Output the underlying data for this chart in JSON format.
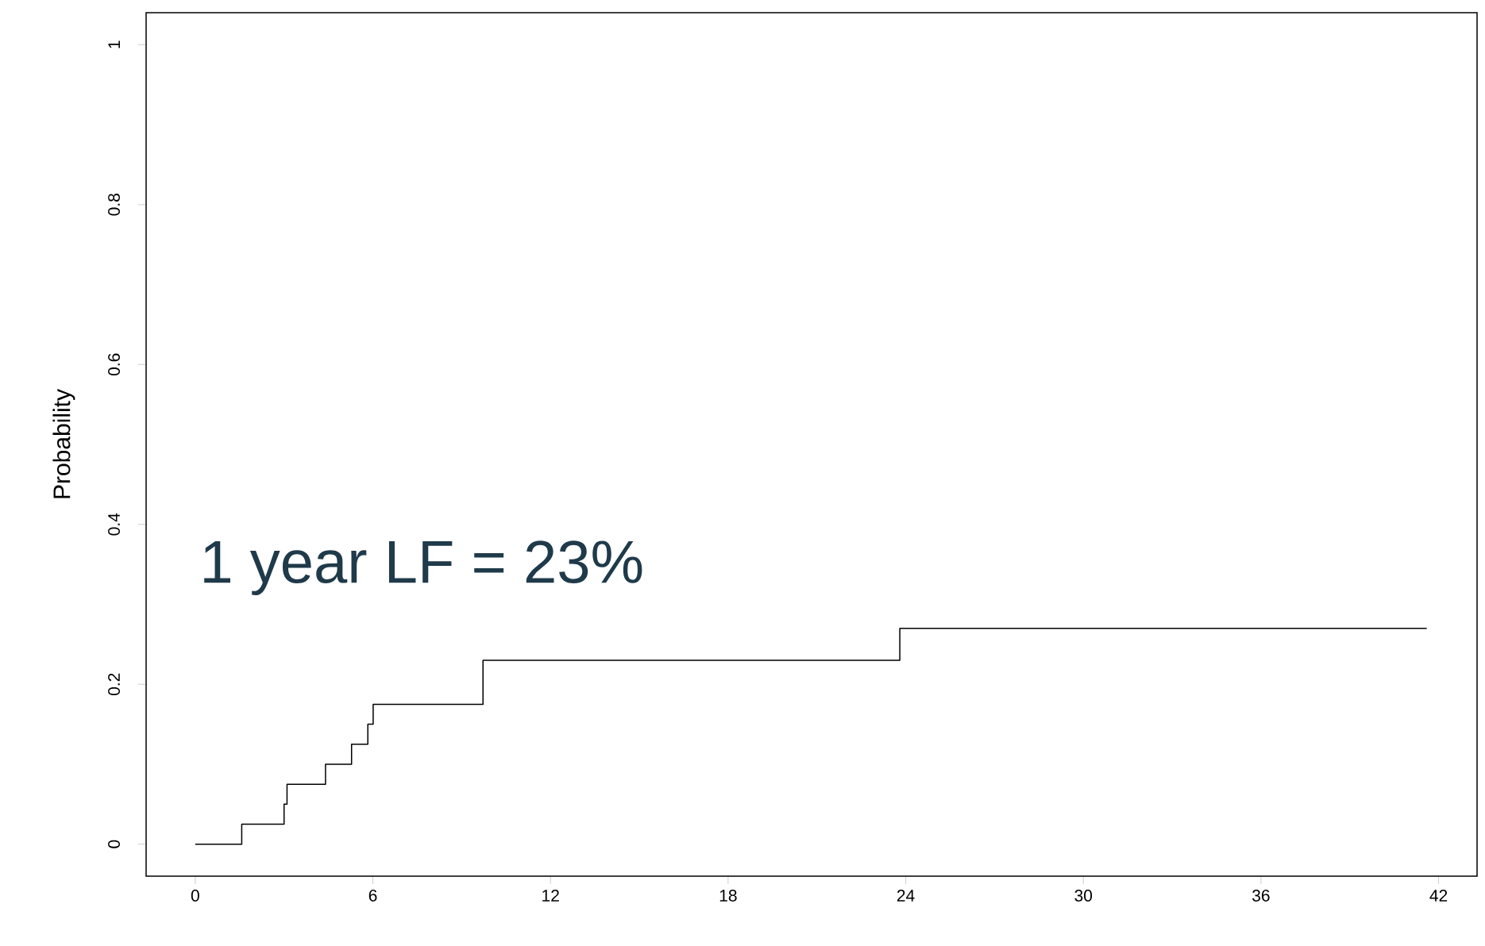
{
  "chart_data": {
    "type": "step",
    "ylabel": "Probability",
    "annotations": [
      "1 year LF = 23%"
    ],
    "x": [
      0,
      1.57,
      3.0,
      3.1,
      4.4,
      5.28,
      5.83,
      6.01,
      9.72,
      23.8,
      41.6
    ],
    "values": [
      0,
      0.025,
      0.05,
      0.075,
      0.1,
      0.125,
      0.15,
      0.175,
      0.23,
      0.27,
      0.27
    ],
    "color": "#000000",
    "xlim": [
      -1.66,
      43.3
    ],
    "ylim": [
      -0.04,
      1.04
    ],
    "xticks": [
      0,
      6,
      12,
      18,
      24,
      30,
      36,
      42
    ],
    "yticks": [
      0,
      0.2,
      0.4,
      0.6,
      0.8,
      1
    ],
    "marker": "none",
    "line_style": "solid"
  }
}
